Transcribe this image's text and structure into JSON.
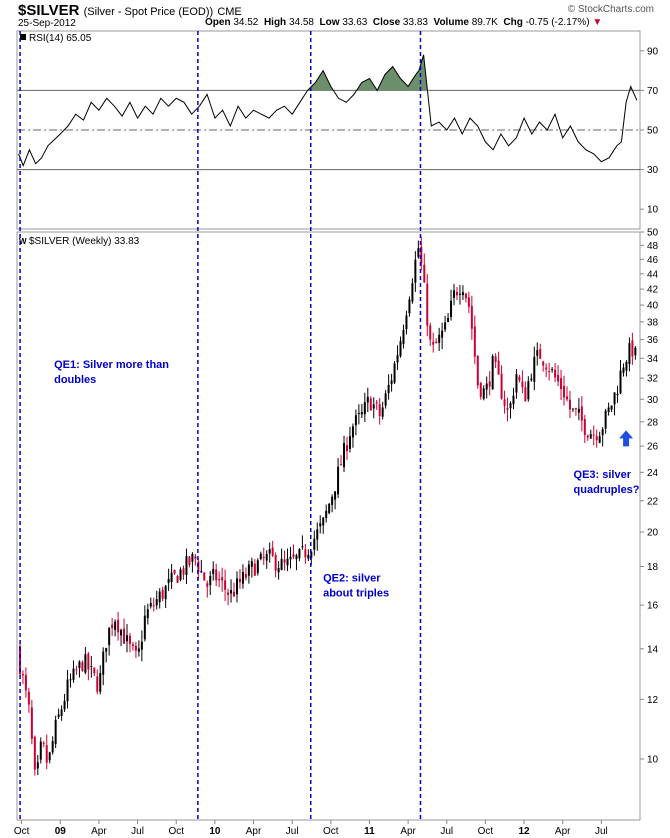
{
  "header": {
    "symbol": "$SILVER",
    "description": "(Silver - Spot Price (EOD))",
    "exchange": "CME",
    "date": "25-Sep-2012",
    "open_label": "Open",
    "open": "34.52",
    "high_label": "High",
    "high": "34.58",
    "low_label": "Low",
    "low": "33.63",
    "close_label": "Close",
    "close": "33.83",
    "volume_label": "Volume",
    "volume": "89.7K",
    "chg_label": "Chg",
    "chg": "-0.75 (-2.17%)",
    "logo": "© StockCharts.com"
  },
  "colors": {
    "up": "#000000",
    "down": "#cc0033",
    "vline": "#0000cc",
    "annotation": "#0000cc",
    "rsi_fill": "#6b8e6b",
    "arrow": "#1f4fe0"
  },
  "chart_data": [
    {
      "type": "line",
      "title": "RSI(14) 65.05",
      "ylim": [
        0,
        100
      ],
      "ticks": [
        10,
        30,
        50,
        70,
        90
      ],
      "ref_lines": [
        30,
        50,
        70
      ],
      "x_range": [
        2008.72,
        2012.75
      ],
      "x": [
        2008.73,
        2008.76,
        2008.8,
        2008.84,
        2008.88,
        2008.92,
        2008.96,
        2009.0,
        2009.05,
        2009.1,
        2009.15,
        2009.2,
        2009.25,
        2009.3,
        2009.35,
        2009.4,
        2009.45,
        2009.5,
        2009.55,
        2009.6,
        2009.65,
        2009.7,
        2009.75,
        2009.8,
        2009.85,
        2009.9,
        2009.95,
        2010.0,
        2010.05,
        2010.1,
        2010.15,
        2010.2,
        2010.25,
        2010.3,
        2010.35,
        2010.4,
        2010.45,
        2010.5,
        2010.55,
        2010.6,
        2010.65,
        2010.7,
        2010.75,
        2010.8,
        2010.85,
        2010.9,
        2010.95,
        2011.0,
        2011.05,
        2011.1,
        2011.15,
        2011.2,
        2011.25,
        2011.3,
        2011.32,
        2011.35,
        2011.4,
        2011.45,
        2011.5,
        2011.55,
        2011.6,
        2011.65,
        2011.7,
        2011.75,
        2011.8,
        2011.85,
        2011.9,
        2011.95,
        2012.0,
        2012.05,
        2012.1,
        2012.15,
        2012.2,
        2012.25,
        2012.3,
        2012.35,
        2012.4,
        2012.45,
        2012.5,
        2012.55,
        2012.6,
        2012.63,
        2012.66,
        2012.69,
        2012.73
      ],
      "values": [
        38,
        32,
        40,
        33,
        36,
        42,
        45,
        48,
        52,
        58,
        55,
        64,
        60,
        66,
        62,
        57,
        64,
        56,
        62,
        58,
        66,
        62,
        66,
        64,
        58,
        62,
        68,
        56,
        60,
        52,
        62,
        56,
        60,
        58,
        56,
        60,
        62,
        58,
        64,
        70,
        74,
        80,
        72,
        66,
        64,
        68,
        74,
        76,
        70,
        78,
        82,
        76,
        72,
        78,
        80,
        88,
        52,
        54,
        50,
        56,
        48,
        56,
        52,
        44,
        40,
        48,
        42,
        46,
        56,
        48,
        54,
        50,
        58,
        46,
        52,
        44,
        40,
        38,
        34,
        36,
        42,
        44,
        64,
        72,
        65
      ],
      "fill_overbought": true
    },
    {
      "type": "candlestick",
      "title": "$SILVER (Weekly) 33.83",
      "legend_marker": "W",
      "scale": "log",
      "ylim": [
        8.3,
        50
      ],
      "ticks": [
        10,
        12,
        14,
        16,
        18,
        20,
        22,
        24,
        26,
        28,
        30,
        32,
        34,
        36,
        38,
        40,
        42,
        44,
        46,
        48,
        50
      ],
      "x_range": [
        2008.72,
        2012.75
      ],
      "x_ticks": [
        {
          "t": 2008.75,
          "label": "Oct"
        },
        {
          "t": 2009.0,
          "label": "09"
        },
        {
          "t": 2009.25,
          "label": "Apr"
        },
        {
          "t": 2009.5,
          "label": "Jul"
        },
        {
          "t": 2009.75,
          "label": "Oct"
        },
        {
          "t": 2010.0,
          "label": "10"
        },
        {
          "t": 2010.25,
          "label": "Apr"
        },
        {
          "t": 2010.5,
          "label": "Jul"
        },
        {
          "t": 2010.75,
          "label": "Oct"
        },
        {
          "t": 2011.0,
          "label": "11"
        },
        {
          "t": 2011.25,
          "label": "Apr"
        },
        {
          "t": 2011.5,
          "label": "Jul"
        },
        {
          "t": 2011.75,
          "label": "Oct"
        },
        {
          "t": 2012.0,
          "label": "12"
        },
        {
          "t": 2012.25,
          "label": "Apr"
        },
        {
          "t": 2012.5,
          "label": "Jul"
        }
      ],
      "anchors": {
        "t": [
          2008.72,
          2008.8,
          2008.84,
          2008.88,
          2008.92,
          2008.97,
          2009.05,
          2009.15,
          2009.25,
          2009.3,
          2009.35,
          2009.45,
          2009.5,
          2009.55,
          2009.65,
          2009.75,
          2009.87,
          2009.95,
          2010.0,
          2010.1,
          2010.15,
          2010.25,
          2010.35,
          2010.45,
          2010.55,
          2010.6,
          2010.7,
          2010.8,
          2010.88,
          2010.95,
          2011.0,
          2011.07,
          2011.15,
          2011.2,
          2011.28,
          2011.32,
          2011.35,
          2011.4,
          2011.45,
          2011.5,
          2011.55,
          2011.6,
          2011.65,
          2011.7,
          2011.75,
          2011.8,
          2011.85,
          2011.9,
          2011.95,
          2012.0,
          2012.05,
          2012.1,
          2012.15,
          2012.2,
          2012.25,
          2012.3,
          2012.35,
          2012.4,
          2012.45,
          2012.5,
          2012.55,
          2012.6,
          2012.65,
          2012.7,
          2012.73
        ],
        "v": [
          14.0,
          11.5,
          9.2,
          10.5,
          9.8,
          11.0,
          12.5,
          13.5,
          12.5,
          14.5,
          15.5,
          14.0,
          13.5,
          15.5,
          16.5,
          17.5,
          18.5,
          17.0,
          17.5,
          16.5,
          17.0,
          18.0,
          18.5,
          18.0,
          18.5,
          19.0,
          20.5,
          24.0,
          27.5,
          28.5,
          30.0,
          28.5,
          32.5,
          36.0,
          44.0,
          48.0,
          42.5,
          34.5,
          36.0,
          37.5,
          41.5,
          43.0,
          39.5,
          31.5,
          30.5,
          33.5,
          31.0,
          28.5,
          32.5,
          30.0,
          33.0,
          34.5,
          33.5,
          32.0,
          31.0,
          29.0,
          28.5,
          27.5,
          27.0,
          27.5,
          29.0,
          31.0,
          34.0,
          35.0,
          33.83
        ]
      },
      "annotations": [
        {
          "id": "qe1",
          "lines": [
            "QE1: Silver more than",
            "doubles"
          ]
        },
        {
          "id": "qe2",
          "lines": [
            "QE2: silver",
            "about triples"
          ]
        },
        {
          "id": "qe3",
          "lines": [
            "QE3: silver",
            "quadruples?"
          ]
        }
      ],
      "event_dates": [
        2008.74,
        2009.89,
        2010.62,
        2011.33
      ],
      "arrow_at": {
        "t": 2012.66,
        "v": 26.3
      }
    }
  ]
}
